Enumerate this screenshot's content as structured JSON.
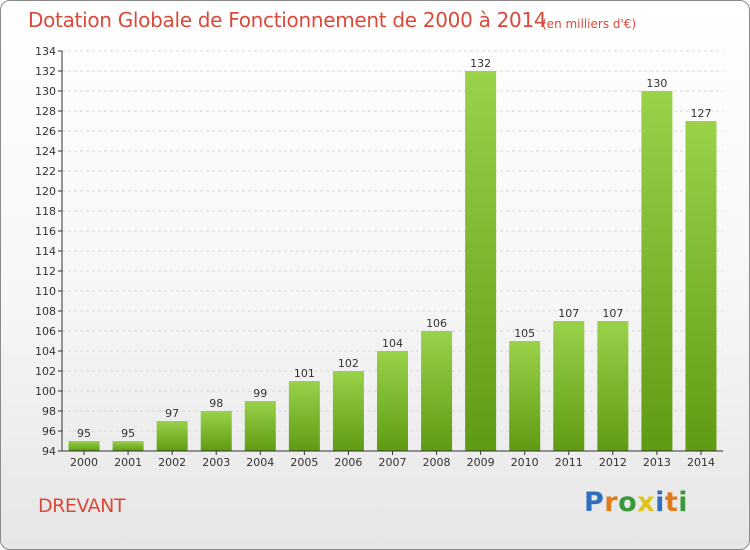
{
  "header": {
    "title": "Dotation Globale de Fonctionnement de 2000 à 2014",
    "subtitle": "(en milliers d'€)"
  },
  "commune": "DREVANT",
  "logo": {
    "text": "Proxiti",
    "letter_colors": [
      "#2f6fbf",
      "#e07b1a",
      "#3a9a3a",
      "#e0c31a",
      "#2f6fbf",
      "#e07b1a",
      "#3a9a3a"
    ]
  },
  "colors": {
    "title": "#d94a3a",
    "bar_top": "#9ad24a",
    "bar_bottom": "#5f9b12",
    "grid": "#d8d8d8",
    "axis": "#333333"
  },
  "chart_data": {
    "type": "bar",
    "categories": [
      "2000",
      "2001",
      "2002",
      "2003",
      "2004",
      "2005",
      "2006",
      "2007",
      "2008",
      "2009",
      "2010",
      "2011",
      "2012",
      "2013",
      "2014"
    ],
    "values": [
      95,
      95,
      97,
      98,
      99,
      101,
      102,
      104,
      106,
      132,
      105,
      107,
      107,
      130,
      127
    ],
    "ylim": [
      94,
      134
    ],
    "ytick_step": 2,
    "grid": true,
    "title": "Dotation Globale de Fonctionnement de 2000 à 2014",
    "xlabel": "",
    "ylabel": ""
  }
}
